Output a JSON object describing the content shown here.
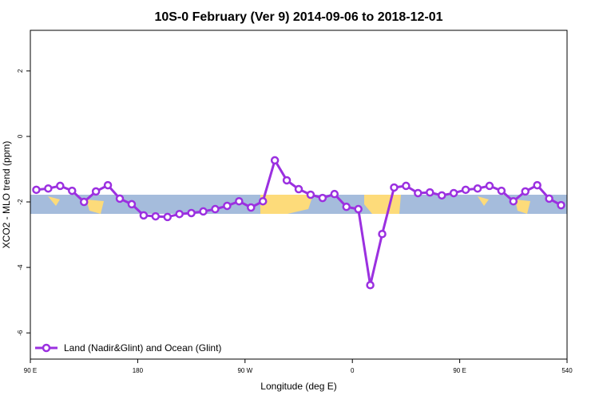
{
  "chart_data": {
    "type": "line",
    "title": "10S-0 February (Ver 9)   2014-09-06 to 2018-12-01",
    "x_label": "Longitude (deg E)",
    "y_label": "XCO2 - MLO trend (ppm)",
    "x": [
      95,
      105,
      115,
      125,
      135,
      145,
      155,
      165,
      175,
      185,
      195,
      205,
      215,
      225,
      235,
      245,
      255,
      265,
      275,
      285,
      295,
      305,
      315,
      325,
      335,
      345,
      355,
      365,
      375,
      385,
      395,
      405,
      415,
      425,
      435,
      445,
      455,
      465,
      475,
      485,
      495,
      505,
      515,
      525,
      535
    ],
    "series": [
      {
        "name": "Land (Nadir&Glint) and Ocean (Glint)",
        "color": "#9b30e0",
        "values": [
          -1.63,
          -1.59,
          -1.51,
          -1.66,
          -2.0,
          -1.68,
          -1.49,
          -1.9,
          -2.07,
          -2.41,
          -2.44,
          -2.46,
          -2.37,
          -2.34,
          -2.29,
          -2.22,
          -2.12,
          -1.98,
          -2.17,
          -1.98,
          -0.73,
          -1.34,
          -1.61,
          -1.78,
          -1.88,
          -1.76,
          -2.15,
          -2.22,
          -4.54,
          -2.98,
          -1.56,
          -1.51,
          -1.73,
          -1.71,
          -1.8,
          -1.73,
          -1.63,
          -1.59,
          -1.51,
          -1.66,
          -1.98,
          -1.68,
          -1.49,
          -1.9,
          -2.1
        ]
      }
    ],
    "xlim": [
      90,
      540
    ],
    "xticks": [
      {
        "value": 90,
        "label": "90 E"
      },
      180,
      {
        "value": 270,
        "label": "90 W"
      },
      {
        "value": 360,
        "label": "0"
      },
      {
        "value": 450,
        "label": "90 E"
      },
      540
    ],
    "ylim": [
      -6.8,
      3.24
    ],
    "yticks": [
      -6,
      -4,
      -2,
      0,
      2
    ],
    "legend": "bottomleft"
  }
}
